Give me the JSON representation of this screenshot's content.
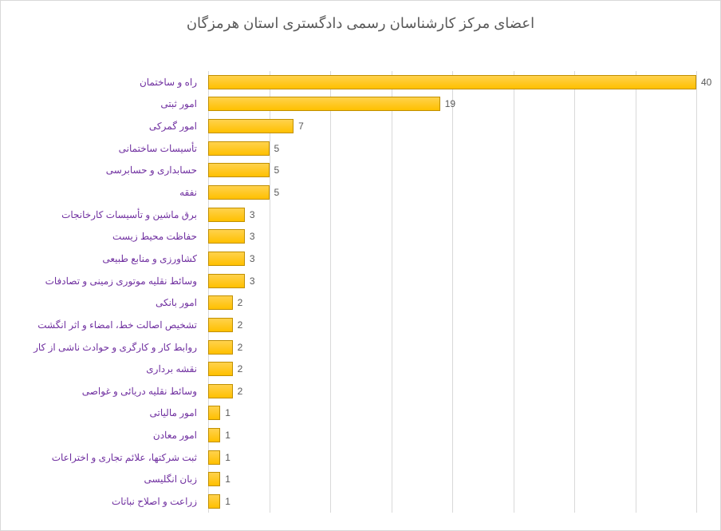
{
  "chart": {
    "type": "bar-horizontal",
    "title": "اعضای مرکز کارشناسان رسمی دادگستری استان هرمزگان",
    "title_fontsize": 18,
    "title_color": "#595959",
    "background_color": "#ffffff",
    "border_color": "#d9d9d9",
    "grid_color": "#d9d9d9",
    "bar_color": "#ffc000",
    "bar_gradient_top": "#ffd24d",
    "bar_border_color": "#c08f00",
    "value_label_color": "#595959",
    "y_label_color": "#7030a0",
    "label_fontsize": 12,
    "x_max": 40,
    "x_tick_step": 5,
    "grid_positions_pct": [
      0,
      12.5,
      25,
      37.5,
      50,
      62.5,
      75,
      87.5,
      100
    ],
    "categories": [
      "راه و ساختمان",
      "امور ثبتی",
      "امور گمرکی",
      "تأسیسات ساختمانی",
      "حسابداری و حسابرسی",
      "نفقه",
      "برق ماشین و تأسیسات کارخانجات",
      "حفاظت محیط زیست",
      "کشاورزی و منابع طبیعی",
      "وسائط نقلیه موتوری زمینی و تصادفات",
      "امور بانکی",
      "تشخیص اصالت خط، امضاء و اثر انگشت",
      "روابط کار و کارگری و حوادث ناشی از کار",
      "نقشه برداری",
      "وسائط نقلیه دریائی و غواصی",
      "امور مالیاتی",
      "امور معادن",
      "ثبت شرکتها، علائم تجاری و اختراعات",
      "زبان انگلیسی",
      "زراعت و اصلاح نباتات"
    ],
    "values": [
      40,
      19,
      7,
      5,
      5,
      5,
      3,
      3,
      3,
      3,
      2,
      2,
      2,
      2,
      2,
      1,
      1,
      1,
      1,
      1
    ]
  }
}
